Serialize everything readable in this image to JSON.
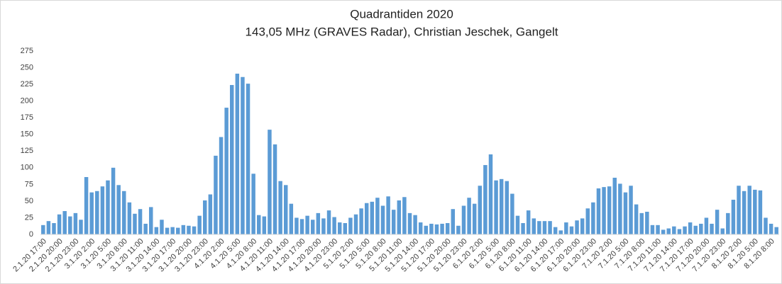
{
  "chart_data": {
    "type": "bar",
    "title": "Quadrantiden 2020",
    "subtitle": "143,05 MHz (GRAVES Radar), Christian Jeschek, Gangelt",
    "color": "#5b9bd5",
    "ylim": [
      0,
      275
    ],
    "yticks": [
      0,
      25,
      50,
      75,
      100,
      125,
      150,
      175,
      200,
      225,
      250,
      275
    ],
    "grid": false,
    "categories": [
      "2.1.20 17:00",
      null,
      null,
      "2.1.20 20:00",
      null,
      null,
      "2.1.20 23:00",
      null,
      null,
      "3.1.20 2:00",
      null,
      null,
      "3.1.20 5:00",
      null,
      null,
      "3.1.20 8:00",
      null,
      null,
      "3.1.20 11:00",
      null,
      null,
      "3.1.20 14:00",
      null,
      null,
      "3.1.20 17:00",
      null,
      null,
      "3.1.20 20:00",
      null,
      null,
      "3.1.20 23:00",
      null,
      null,
      "4.1.20 2:00",
      null,
      null,
      "4.1.20 5:00",
      null,
      null,
      "4.1.20 8:00",
      null,
      null,
      "4.1.20 11:00",
      null,
      null,
      "4.1.20 14:00",
      null,
      null,
      "4.1.20 17:00",
      null,
      null,
      "4.1.20 20:00",
      null,
      null,
      "4.1.20 23:00",
      null,
      null,
      "5.1.20 2:00",
      null,
      null,
      "5.1.20 5:00",
      null,
      null,
      "5.1.20 8:00",
      null,
      null,
      "5.1.20 11:00",
      null,
      null,
      "5.1.20 14:00",
      null,
      null,
      "5.1.20 17:00",
      null,
      null,
      "5.1.20 20:00",
      null,
      null,
      "5.1.20 23:00",
      null,
      null,
      "6.1.20 2:00",
      null,
      null,
      "6.1.20 5:00",
      null,
      null,
      "6.1.20 8:00",
      null,
      null,
      "6.1.20 11:00",
      null,
      null,
      "6.1.20 14:00",
      null,
      null,
      "6.1.20 17:00",
      null,
      null,
      "6.1.20 20:00",
      null,
      null,
      "6.1.20 23:00",
      null,
      null,
      "7.1.20 2:00",
      null,
      null,
      "7.1.20 5:00",
      null,
      null,
      "7.1.20 8:00",
      null,
      null,
      "7.1.20 11:00",
      null,
      null,
      "7.1.20 14:00",
      null,
      null,
      "7.1.20 17:00",
      null,
      null,
      "7.1.20 20:00",
      null,
      null,
      "7.1.20 23:00",
      null,
      null,
      "8.1.20 2:00",
      null,
      null,
      "8.1.20 5:00",
      null,
      null,
      "8.1.20 8:00",
      null
    ],
    "values": [
      14,
      20,
      17,
      30,
      35,
      27,
      32,
      22,
      86,
      63,
      65,
      72,
      81,
      100,
      74,
      65,
      48,
      31,
      38,
      16,
      41,
      11,
      22,
      10,
      11,
      10,
      14,
      13,
      12,
      28,
      51,
      60,
      118,
      146,
      190,
      224,
      241,
      236,
      226,
      91,
      29,
      27,
      157,
      135,
      80,
      74,
      46,
      25,
      23,
      28,
      22,
      32,
      24,
      36,
      26,
      18,
      17,
      25,
      30,
      39,
      47,
      49,
      55,
      43,
      57,
      37,
      51,
      56,
      32,
      29,
      18,
      13,
      16,
      15,
      16,
      17,
      38,
      13,
      43,
      55,
      46,
      73,
      104,
      120,
      81,
      83,
      80,
      61,
      28,
      17,
      36,
      24,
      20,
      20,
      20,
      11,
      6,
      18,
      12,
      21,
      24,
      39,
      48,
      69,
      71,
      72,
      85,
      76,
      63,
      73,
      45,
      32,
      34,
      14,
      14,
      7,
      9,
      12,
      8,
      12,
      18,
      13,
      16,
      25,
      16,
      37,
      9,
      32,
      52,
      73,
      65,
      73,
      67,
      66,
      25,
      16,
      11
    ]
  }
}
